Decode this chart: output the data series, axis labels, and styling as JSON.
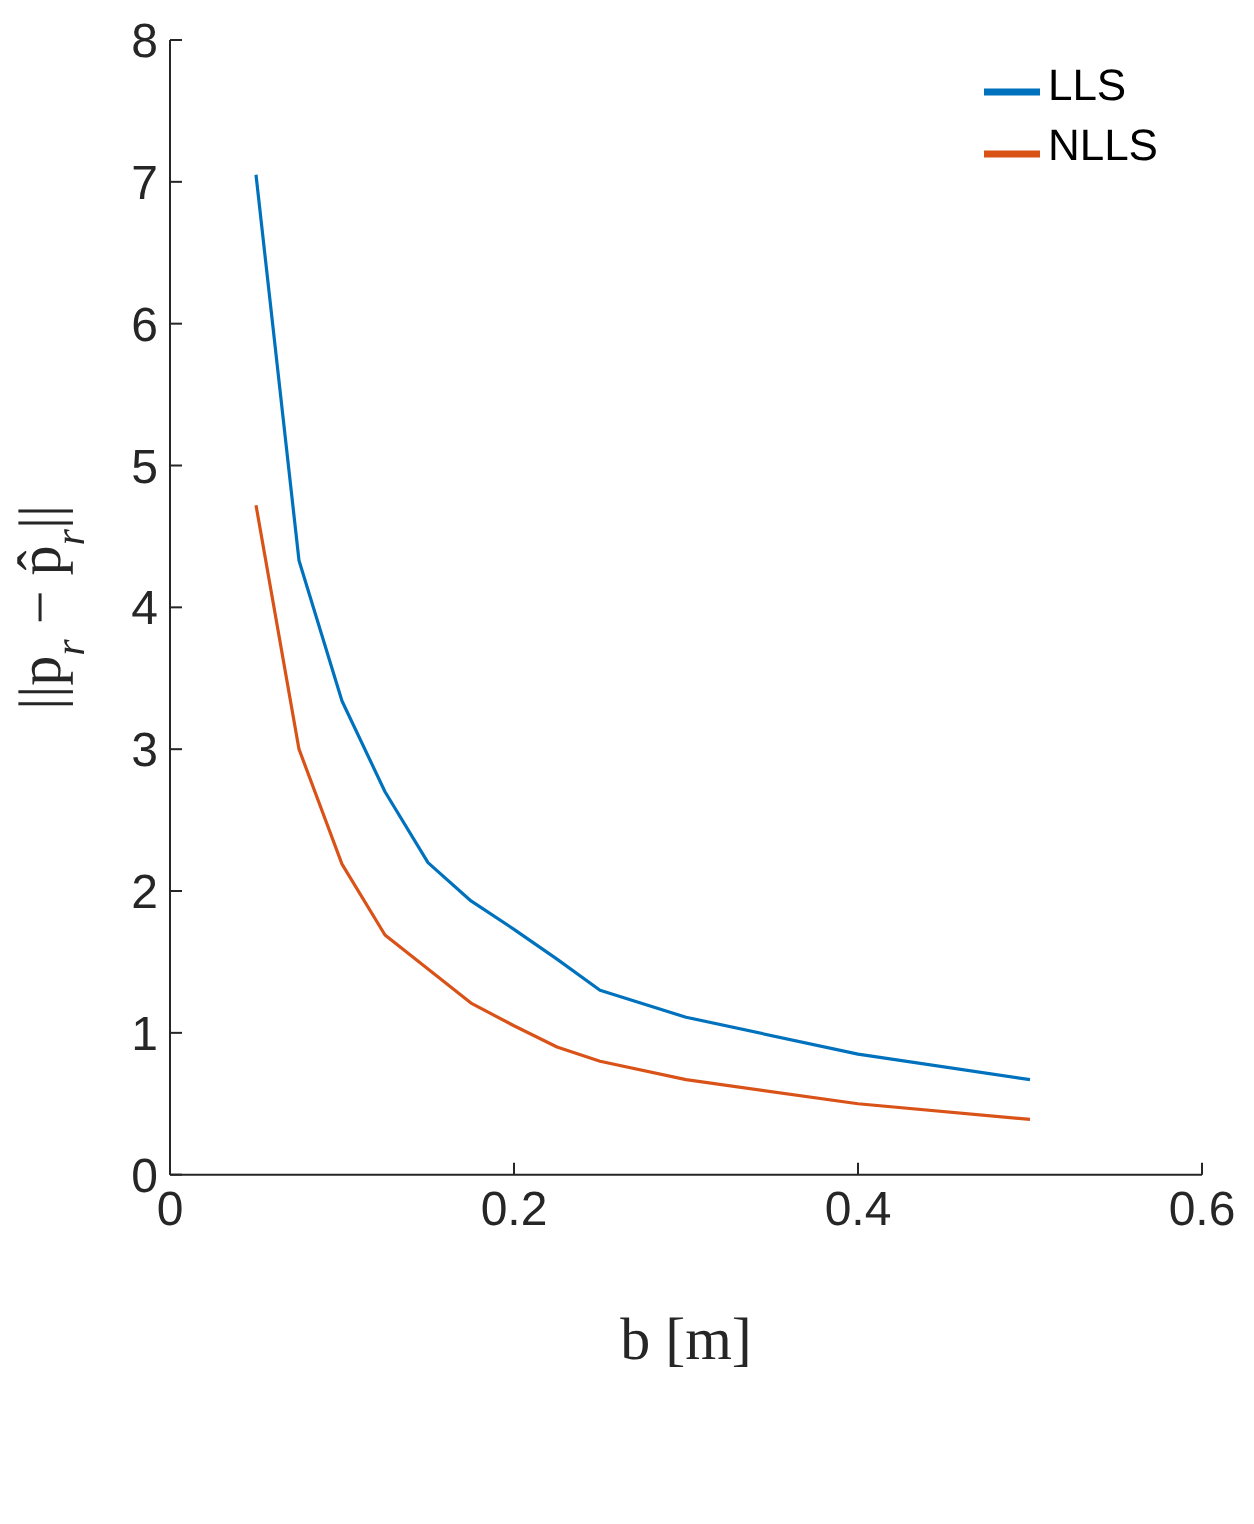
{
  "chart_data": {
    "type": "line",
    "xlabel": "b [m]",
    "ylabel": "||p$_{r}$ − p̂$_{r}$||",
    "x": [
      0.05,
      0.075,
      0.1,
      0.125,
      0.15,
      0.175,
      0.2,
      0.225,
      0.25,
      0.3,
      0.4,
      0.5
    ],
    "series": [
      {
        "name": "LLS",
        "color": "#0072bd",
        "values": [
          7.05,
          4.33,
          3.34,
          2.7,
          2.2,
          1.93,
          1.73,
          1.52,
          1.3,
          1.11,
          0.85,
          0.67
        ]
      },
      {
        "name": "NLLS",
        "color": "#d95319",
        "values": [
          4.72,
          3.0,
          2.19,
          1.69,
          1.45,
          1.21,
          1.05,
          0.9,
          0.8,
          0.67,
          0.5,
          0.39
        ]
      }
    ],
    "xlim": [
      0,
      0.6
    ],
    "xticks": [
      0,
      0.2,
      0.4,
      0.6
    ],
    "ylim": [
      0,
      8
    ],
    "yticks": [
      0,
      1,
      2,
      3,
      4,
      5,
      6,
      7,
      8
    ],
    "grid": false,
    "legend": "top right",
    "marker": "none",
    "line_style": "solid"
  }
}
